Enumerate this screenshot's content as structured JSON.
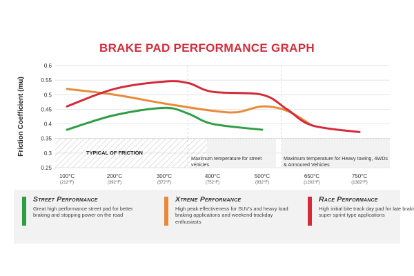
{
  "title": "BRAKE PAD PERFORMANCE GRAPH",
  "chart_data": {
    "type": "line",
    "title": "BRAKE PAD PERFORMANCE GRAPH",
    "ylabel": "Friction Coefficient (mu)",
    "xlabel": "",
    "ylim": [
      0.25,
      0.6
    ],
    "yticks": [
      "0.6",
      "0.55",
      "0.5",
      "0.45",
      "0.4",
      "0.35",
      "0.3",
      "0.25"
    ],
    "categories": [
      {
        "c": "100°C",
        "f": "(212°F)"
      },
      {
        "c": "200°C",
        "f": "(392°F)"
      },
      {
        "c": "300°C",
        "f": "(572°F)"
      },
      {
        "c": "400°C",
        "f": "(752°F)"
      },
      {
        "c": "500°C",
        "f": "(932°F)"
      },
      {
        "c": "650°C",
        "f": "(1202°F)"
      },
      {
        "c": "750°C",
        "f": "(1382°F)"
      }
    ],
    "grid": true,
    "series": [
      {
        "name": "Street Performance",
        "color": "#2e9e44",
        "points": [
          [
            0,
            0.38
          ],
          [
            1,
            0.43
          ],
          [
            2,
            0.455
          ],
          [
            2.5,
            0.435
          ],
          [
            3,
            0.4
          ],
          [
            4,
            0.38
          ]
        ]
      },
      {
        "name": "Xtreme Performance",
        "color": "#e98a3a",
        "points": [
          [
            0,
            0.52
          ],
          [
            1,
            0.5
          ],
          [
            2,
            0.47
          ],
          [
            3,
            0.445
          ],
          [
            3.5,
            0.44
          ],
          [
            4,
            0.46
          ],
          [
            4.5,
            0.445
          ],
          [
            5,
            0.395
          ]
        ]
      },
      {
        "name": "Race Performance",
        "color": "#d42b3a",
        "points": [
          [
            0,
            0.46
          ],
          [
            1,
            0.52
          ],
          [
            2,
            0.545
          ],
          [
            2.5,
            0.54
          ],
          [
            3,
            0.51
          ],
          [
            4,
            0.5
          ],
          [
            4.5,
            0.45
          ],
          [
            5,
            0.395
          ],
          [
            6,
            0.372
          ]
        ]
      }
    ],
    "annotations": [
      {
        "text": "TYPICAL OF FRICTION"
      },
      {
        "text": "Maximum temperature for street vehicles"
      },
      {
        "text": "Maximum temperature for Heavy towing, 4WDs & Armoured Vehicles"
      }
    ],
    "typical_band": [
      0.25,
      0.35
    ]
  },
  "legend": [
    {
      "name": "Street Performance",
      "color": "#2e9e44",
      "desc": "Great high performance street pad for better braking and stopping power on the road"
    },
    {
      "name": "Xtreme Performance",
      "color": "#e98a3a",
      "desc": "High peak effectiveness for SUV's and heavy load braking applications and weekend trackday enthusiasts"
    },
    {
      "name": "Race Performance",
      "color": "#d42b3a",
      "desc": "High initial bite track day pad for late braking in super sprint type applications"
    }
  ]
}
